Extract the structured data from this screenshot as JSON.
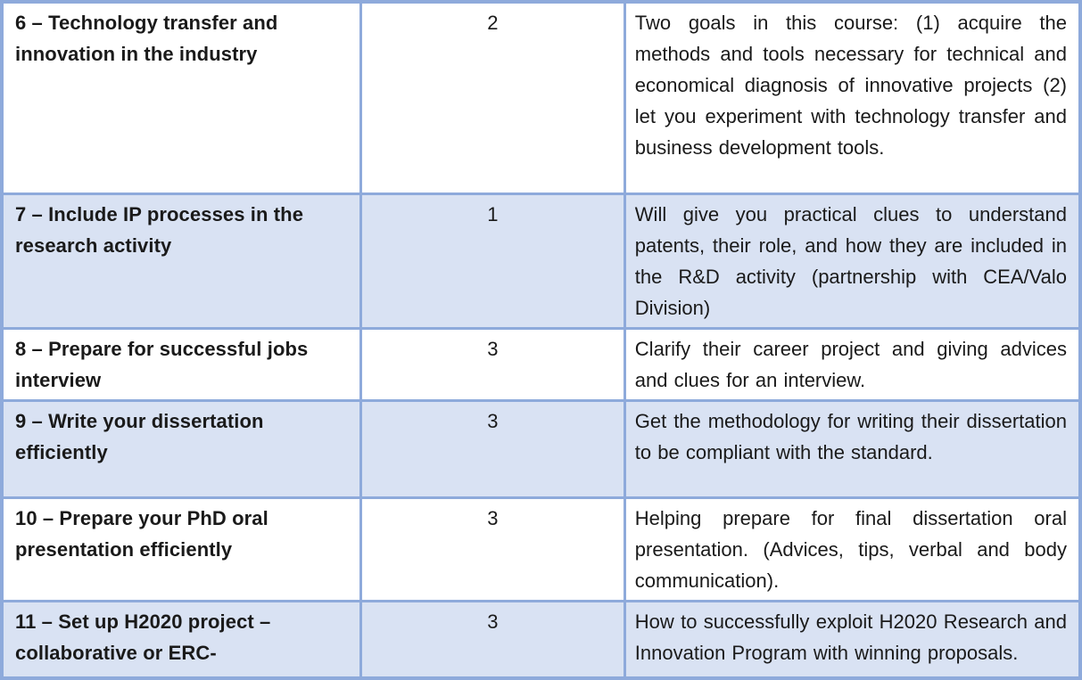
{
  "table": {
    "style": {
      "border_color": "#8eaadb",
      "band_fill": "#d9e2f3",
      "plain_fill": "#ffffff",
      "text_color": "#1a1a1a"
    },
    "columns": [
      "course",
      "sessions",
      "description"
    ],
    "rows": [
      {
        "title": "6 – Technology transfer and innovation in the industry",
        "sessions": "2",
        "description": "Two goals in this course: (1) acquire the methods and tools necessary for technical and economical diagnosis of innovative projects (2) let you experiment with technology transfer and business development tools.",
        "banded": false
      },
      {
        "title": "7 – Include IP processes in the research activity",
        "sessions": "1",
        "description": "Will give you practical clues to understand patents, their role, and how they are included in the R&D activity (partnership with CEA/Valo Division)",
        "banded": true
      },
      {
        "title": "8 – Prepare for successful jobs interview",
        "sessions": "3",
        "description": "Clarify their career project and giving advices and clues for an interview.",
        "banded": false
      },
      {
        "title": "9 – Write your dissertation efficiently",
        "sessions": "3",
        "description": "Get the methodology for writing their dissertation to be compliant with the standard.",
        "banded": true
      },
      {
        "title": "10 – Prepare your PhD oral presentation efficiently",
        "sessions": "3",
        "description": "Helping prepare for final dissertation oral presentation. (Advices, tips, verbal and body communication).",
        "banded": false
      },
      {
        "title": "11 – Set up H2020 project – collaborative or ERC-",
        "sessions": "3",
        "description": "How to successfully exploit H2020 Research and Innovation Program with winning proposals.",
        "banded": true
      }
    ]
  }
}
